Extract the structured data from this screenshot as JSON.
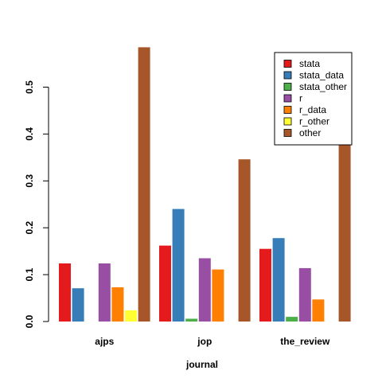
{
  "chart_data": {
    "type": "bar",
    "title": "",
    "xlabel": "journal",
    "ylabel": "",
    "ylim": [
      0,
      0.6
    ],
    "yticks": [
      "0.0",
      "0.1",
      "0.2",
      "0.3",
      "0.4",
      "0.5"
    ],
    "categories": [
      "ajps",
      "jop",
      "the_review"
    ],
    "grid": false,
    "legend_position": "top-right",
    "series": [
      {
        "name": "stata",
        "color": "#E41A1C",
        "values": [
          0.124,
          0.162,
          0.155
        ]
      },
      {
        "name": "stata_data",
        "color": "#377EB8",
        "values": [
          0.071,
          0.24,
          0.178
        ]
      },
      {
        "name": "stata_other",
        "color": "#4DAF4A",
        "values": [
          0.0,
          0.006,
          0.01
        ]
      },
      {
        "name": "r",
        "color": "#984EA3",
        "values": [
          0.124,
          0.135,
          0.114
        ]
      },
      {
        "name": "r_data",
        "color": "#FF7F00",
        "values": [
          0.073,
          0.111,
          0.047
        ]
      },
      {
        "name": "r_other",
        "color": "#FFFF33",
        "values": [
          0.024,
          0.0,
          0.0
        ]
      },
      {
        "name": "other",
        "color": "#A65628",
        "values": [
          0.585,
          0.346,
          0.38
        ]
      }
    ]
  }
}
